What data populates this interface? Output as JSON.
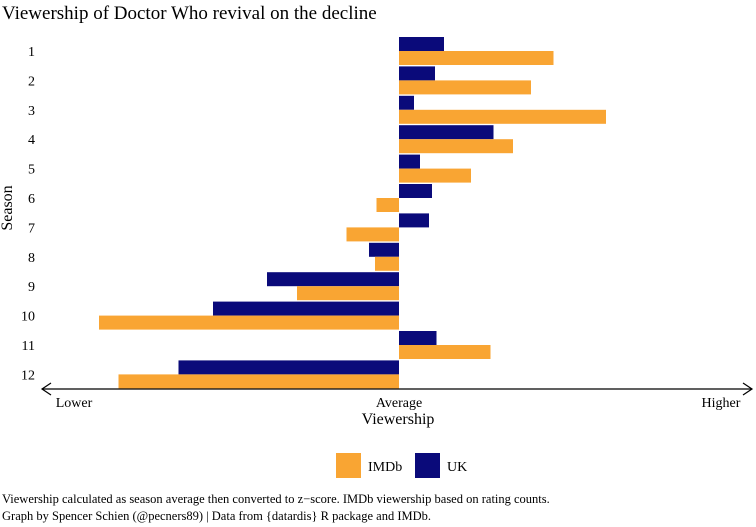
{
  "chart_data": {
    "type": "bar",
    "orientation": "horizontal",
    "title": "Viewership of Doctor Who revival on the decline",
    "ylabel": "Season",
    "xlabel": "Viewership",
    "x_tick_labels": [
      "Lower",
      "Average",
      "Higher"
    ],
    "xlim": [
      -2.0,
      2.4
    ],
    "categories": [
      "1",
      "2",
      "3",
      "4",
      "5",
      "6",
      "7",
      "8",
      "9",
      "10",
      "11",
      "12"
    ],
    "series": [
      {
        "name": "UK",
        "color": "#0a0a7a",
        "values": [
          0.3,
          0.24,
          0.1,
          0.63,
          0.14,
          0.22,
          0.2,
          -0.2,
          -0.88,
          -1.24,
          0.25,
          -1.47
        ]
      },
      {
        "name": "IMDb",
        "color": "#f9a533",
        "values": [
          1.03,
          0.88,
          1.38,
          0.76,
          0.48,
          -0.15,
          -0.35,
          -0.16,
          -0.68,
          -2.0,
          0.61,
          -1.87
        ]
      }
    ],
    "legend": {
      "position": "bottom",
      "order": [
        "IMDb",
        "UK"
      ]
    },
    "grid": false
  },
  "caption": {
    "line1": "Viewership calculated as season average then converted to z−score. IMDb viewership based on rating counts.",
    "line2": "Graph by Spencer Schien (@pecners89) | Data from {datardis} R package and IMDb."
  }
}
